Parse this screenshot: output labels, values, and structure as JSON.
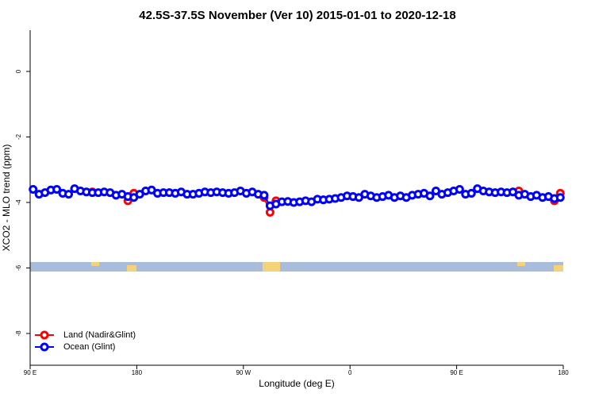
{
  "chart_data": {
    "type": "line",
    "title": "42.5S-37.5S November (Ver 10)   2015-01-01 to 2020-12-18",
    "x_label": "Longitude (deg E)",
    "y_label": "XCO2 - MLO trend (ppm)",
    "x": [
      92.5,
      97.5,
      102.5,
      107.5,
      112.5,
      117.5,
      122.5,
      127.5,
      132.5,
      137.5,
      142.5,
      147.5,
      152.5,
      157.5,
      162.5,
      167.5,
      172.5,
      177.5,
      182.5,
      187.5,
      192.5,
      197.5,
      202.5,
      207.5,
      212.5,
      217.5,
      222.5,
      227.5,
      232.5,
      237.5,
      242.5,
      247.5,
      252.5,
      257.5,
      262.5,
      267.5,
      272.5,
      277.5,
      282.5,
      287.5,
      292.5,
      297.5,
      302.5,
      307.5,
      312.5,
      317.5,
      322.5,
      327.5,
      332.5,
      337.5,
      342.5,
      347.5,
      352.5,
      357.5,
      362.5,
      367.5,
      372.5,
      377.5,
      382.5,
      387.5,
      392.5,
      397.5,
      402.5,
      407.5,
      412.5,
      417.5,
      422.5,
      427.5,
      432.5,
      437.5,
      442.5,
      447.5,
      452.5,
      457.5,
      462.5,
      467.5,
      472.5,
      477.5,
      482.5,
      487.5,
      492.5,
      497.5,
      502.5,
      507.5,
      512.5,
      517.5,
      522.5,
      527.5,
      532.5,
      537.5
    ],
    "series": [
      {
        "name": "Land (Nadir&Glint)",
        "color": "#ff0000",
        "values": [
          null,
          null,
          null,
          null,
          null,
          null,
          null,
          null,
          null,
          null,
          -3.68,
          null,
          null,
          null,
          null,
          null,
          -3.95,
          -3.72,
          null,
          null,
          null,
          null,
          null,
          null,
          null,
          null,
          null,
          null,
          null,
          null,
          null,
          null,
          null,
          null,
          null,
          null,
          null,
          null,
          null,
          -3.85,
          -4.3,
          -3.95,
          null,
          null,
          null,
          null,
          null,
          null,
          null,
          null,
          null,
          null,
          null,
          null,
          null,
          null,
          null,
          null,
          null,
          null,
          null,
          null,
          null,
          null,
          null,
          null,
          null,
          null,
          null,
          null,
          null,
          null,
          null,
          null,
          null,
          null,
          null,
          null,
          null,
          null,
          null,
          null,
          -3.65,
          null,
          null,
          null,
          null,
          null,
          -3.95,
          -3.72
        ]
      },
      {
        "name": "Ocean (Glint)",
        "color": "#0000ff",
        "values": [
          -3.6,
          -3.75,
          -3.7,
          -3.62,
          -3.6,
          -3.72,
          -3.75,
          -3.58,
          -3.65,
          -3.68,
          -3.7,
          -3.7,
          -3.68,
          -3.7,
          -3.78,
          -3.75,
          -3.82,
          -3.85,
          -3.75,
          -3.65,
          -3.62,
          -3.72,
          -3.7,
          -3.7,
          -3.72,
          -3.68,
          -3.75,
          -3.75,
          -3.72,
          -3.68,
          -3.7,
          -3.68,
          -3.7,
          -3.72,
          -3.7,
          -3.65,
          -3.72,
          -3.68,
          -3.75,
          -3.78,
          -4.1,
          -4.05,
          -3.98,
          -3.97,
          -4.0,
          -3.98,
          -3.95,
          -3.98,
          -3.9,
          -3.92,
          -3.9,
          -3.88,
          -3.85,
          -3.8,
          -3.82,
          -3.85,
          -3.75,
          -3.8,
          -3.85,
          -3.82,
          -3.78,
          -3.85,
          -3.8,
          -3.85,
          -3.78,
          -3.75,
          -3.72,
          -3.8,
          -3.65,
          -3.75,
          -3.7,
          -3.65,
          -3.6,
          -3.75,
          -3.72,
          -3.58,
          -3.65,
          -3.68,
          -3.7,
          -3.68,
          -3.7,
          -3.68,
          -3.78,
          -3.75,
          -3.82,
          -3.78,
          -3.85,
          -3.82,
          -3.88,
          -3.85
        ]
      }
    ],
    "xlim": [
      90,
      540
    ],
    "ylim": [
      -8.97,
      1.26
    ],
    "xticks": [
      {
        "value": 90,
        "label": "90 E"
      },
      180,
      {
        "value": 270,
        "label": "90 W"
      },
      {
        "value": 360,
        "label": "0"
      },
      {
        "value": 450,
        "label": "90 E"
      },
      180
    ],
    "yticks": [
      0,
      -2,
      -4,
      -6,
      -8
    ],
    "legend": "bottomleft"
  }
}
